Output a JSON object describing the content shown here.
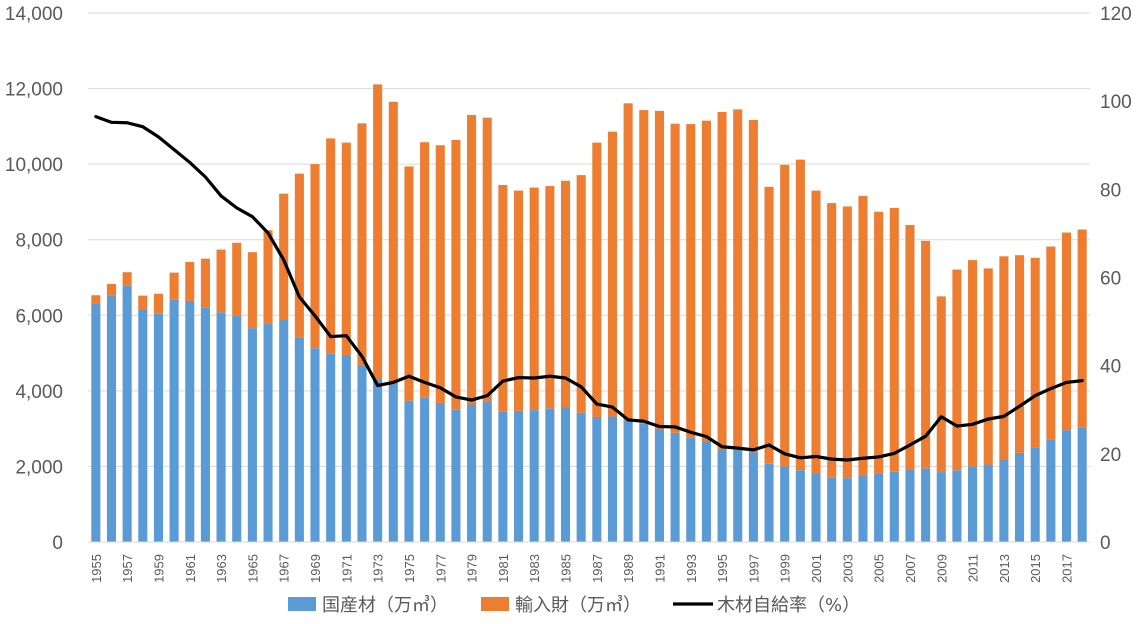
{
  "chart_data": {
    "type": "bar",
    "stacked": true,
    "title": "",
    "xlabel": "",
    "ylabel": "",
    "y2label": "",
    "ylim": [
      0,
      14000
    ],
    "y2lim": [
      0,
      120
    ],
    "grid": true,
    "legend_position": "bottom",
    "y_ticks": [
      "0",
      "2,000",
      "4,000",
      "6,000",
      "8,000",
      "10,000",
      "12,000",
      "14,000"
    ],
    "y2_ticks": [
      "0",
      "20",
      "40",
      "60",
      "80",
      "100",
      "120"
    ],
    "years": [
      1955,
      1956,
      1957,
      1958,
      1959,
      1960,
      1961,
      1962,
      1963,
      1964,
      1965,
      1966,
      1967,
      1968,
      1969,
      1970,
      1971,
      1972,
      1973,
      1974,
      1975,
      1976,
      1977,
      1978,
      1979,
      1980,
      1981,
      1982,
      1983,
      1984,
      1985,
      1986,
      1987,
      1988,
      1989,
      1990,
      1991,
      1992,
      1993,
      1994,
      1995,
      1996,
      1997,
      1998,
      1999,
      2000,
      2001,
      2002,
      2003,
      2004,
      2005,
      2006,
      2007,
      2008,
      2009,
      2010,
      2011,
      2012,
      2013,
      2014,
      2015,
      2016,
      2017,
      2018
    ],
    "series": [
      {
        "name": "国産材（万㎥）",
        "color": "#5B9BD5",
        "axis": "left",
        "kind": "bar",
        "values": [
          6300,
          6530,
          6780,
          6140,
          6040,
          6410,
          6380,
          6210,
          6080,
          6000,
          5660,
          5780,
          5900,
          5420,
          5130,
          4980,
          4950,
          4670,
          4300,
          4220,
          3740,
          3830,
          3680,
          3500,
          3640,
          3720,
          3450,
          3470,
          3490,
          3540,
          3560,
          3420,
          3310,
          3320,
          3220,
          3130,
          2990,
          2890,
          2760,
          2660,
          2460,
          2440,
          2370,
          2070,
          2000,
          1900,
          1800,
          1710,
          1690,
          1770,
          1810,
          1860,
          1920,
          1950,
          1850,
          1900,
          2000,
          2050,
          2170,
          2360,
          2490,
          2720,
          2960,
          3020
        ]
      },
      {
        "name": "輸入財（万㎥）",
        "color": "#ED7D31",
        "axis": "left",
        "kind": "bar",
        "values": [
          230,
          300,
          360,
          380,
          530,
          720,
          1030,
          1290,
          1660,
          1920,
          2010,
          2470,
          3320,
          4330,
          4870,
          5700,
          5620,
          6410,
          7810,
          7430,
          6200,
          6750,
          6820,
          7140,
          7660,
          7510,
          6000,
          5830,
          5890,
          5880,
          6000,
          6290,
          7260,
          7540,
          8390,
          8300,
          8420,
          8180,
          8300,
          8490,
          8920,
          9010,
          8800,
          7330,
          7980,
          8220,
          7500,
          7260,
          7190,
          7390,
          6930,
          6980,
          6470,
          6020,
          4650,
          5310,
          5460,
          5190,
          5390,
          5230,
          5030,
          5100,
          5230,
          5250
        ]
      },
      {
        "name": "木材自給率（%）",
        "color": "#000000",
        "axis": "right",
        "kind": "line",
        "values": [
          96.5,
          95.2,
          95.1,
          94.2,
          91.9,
          89.0,
          86.1,
          82.8,
          78.5,
          75.8,
          73.8,
          70.1,
          64.0,
          55.6,
          51.3,
          46.6,
          46.8,
          42.1,
          35.5,
          36.2,
          37.6,
          36.2,
          35.0,
          32.9,
          32.2,
          33.2,
          36.5,
          37.3,
          37.2,
          37.6,
          37.2,
          35.2,
          31.3,
          30.6,
          27.7,
          27.4,
          26.2,
          26.1,
          24.9,
          23.9,
          21.6,
          21.3,
          20.9,
          22.0,
          20.0,
          19.1,
          19.4,
          18.8,
          18.6,
          19.0,
          19.3,
          20.1,
          22.0,
          24.0,
          28.4,
          26.3,
          26.7,
          27.9,
          28.5,
          30.8,
          33.2,
          34.8,
          36.2,
          36.6
        ]
      }
    ],
    "x_tick_labels": [
      "1955",
      "1957",
      "1959",
      "1961",
      "1963",
      "1965",
      "1967",
      "1969",
      "1971",
      "1973",
      "1975",
      "1977",
      "1979",
      "1981",
      "1983",
      "1985",
      "1987",
      "1989",
      "1991",
      "1993",
      "1995",
      "1997",
      "1999",
      "2001",
      "2003",
      "2005",
      "2007",
      "2009",
      "2011",
      "2013",
      "2015",
      "2017"
    ]
  }
}
